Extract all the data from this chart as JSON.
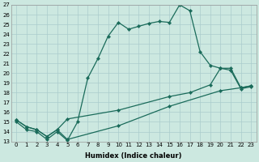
{
  "xlabel": "Humidex (Indice chaleur)",
  "bg_color": "#cce8e0",
  "grid_color": "#aacccc",
  "line_color": "#1a6b5a",
  "line1_x": [
    0,
    1,
    2,
    3,
    4,
    5,
    6,
    7,
    8,
    9,
    10,
    11,
    12,
    13,
    14,
    15,
    16,
    17,
    18,
    19,
    20,
    21,
    22,
    23
  ],
  "line1_y": [
    15.0,
    14.2,
    14.0,
    13.2,
    14.0,
    13.1,
    15.0,
    19.5,
    21.5,
    23.8,
    25.2,
    24.5,
    24.8,
    25.1,
    25.3,
    25.2,
    27.0,
    26.4,
    22.2,
    20.8,
    20.5,
    20.3,
    18.4,
    18.6
  ],
  "line2_x": [
    0,
    1,
    2,
    3,
    4,
    5,
    10,
    15,
    17,
    19,
    20,
    21,
    22,
    23
  ],
  "line2_y": [
    15.2,
    14.5,
    14.2,
    13.5,
    14.2,
    15.3,
    16.2,
    17.6,
    18.0,
    18.8,
    20.5,
    20.5,
    18.5,
    18.7
  ],
  "line3_x": [
    0,
    1,
    2,
    3,
    4,
    5,
    10,
    15,
    20,
    22,
    23
  ],
  "line3_y": [
    15.2,
    14.5,
    14.2,
    13.5,
    14.2,
    13.2,
    14.6,
    16.6,
    18.2,
    18.5,
    18.7
  ],
  "xmin": -0.5,
  "xmax": 23.5,
  "ymin": 13,
  "ymax": 27,
  "xticks": [
    0,
    1,
    2,
    3,
    4,
    5,
    6,
    7,
    8,
    9,
    10,
    11,
    12,
    13,
    14,
    15,
    16,
    17,
    18,
    19,
    20,
    21,
    22,
    23
  ],
  "yticks": [
    13,
    14,
    15,
    16,
    17,
    18,
    19,
    20,
    21,
    22,
    23,
    24,
    25,
    26,
    27
  ],
  "tick_fontsize": 5.0,
  "xlabel_fontsize": 6.0
}
